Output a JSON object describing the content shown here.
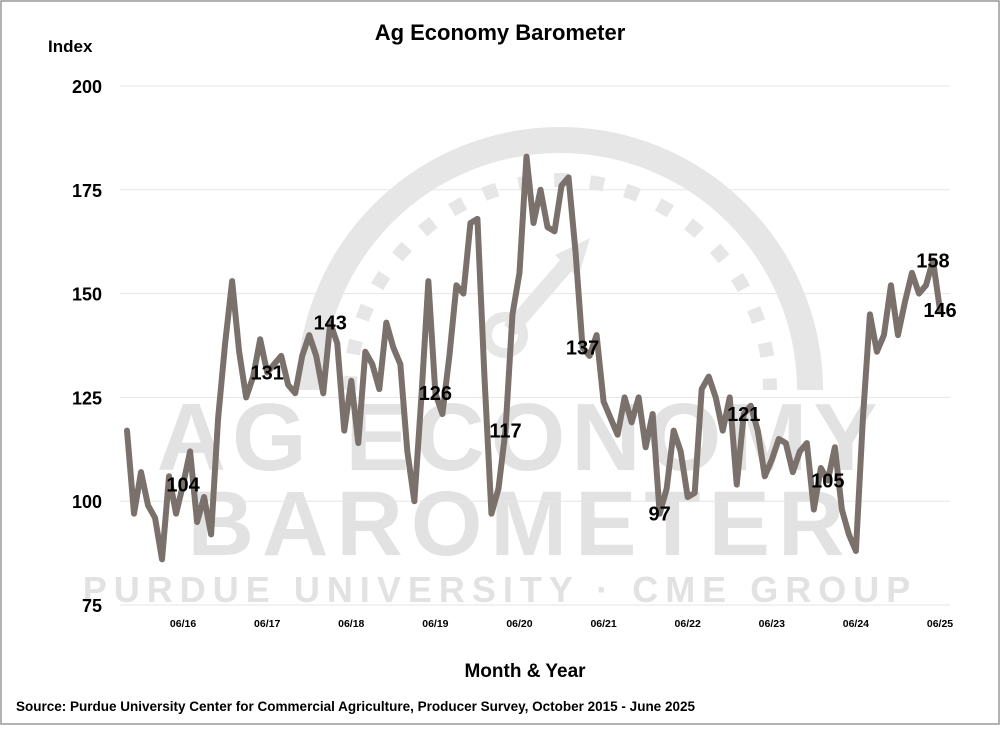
{
  "chart_data": {
    "type": "line",
    "title": "Ag Economy Barometer",
    "y_label": "Index",
    "x_label": "Month & Year",
    "source": "Source: Purdue University Center for Commercial Agriculture, Producer Survey, October 2015 - June 2025",
    "watermark": {
      "line1": "AG ECONOMY",
      "line2": "BAROMETER",
      "line3": "PURDUE UNIVERSITY · CME GROUP"
    },
    "color": "#7b716c",
    "grid": true,
    "ylim": [
      75,
      200
    ],
    "yticks": [
      75,
      100,
      125,
      150,
      175,
      200
    ],
    "categories": [
      null,
      null,
      null,
      null,
      null,
      null,
      null,
      null,
      "06/16",
      null,
      null,
      null,
      null,
      null,
      null,
      null,
      null,
      null,
      null,
      null,
      "06/17",
      null,
      null,
      null,
      null,
      null,
      null,
      null,
      null,
      null,
      null,
      null,
      "06/18",
      null,
      null,
      null,
      null,
      null,
      null,
      null,
      null,
      null,
      null,
      null,
      "06/19",
      null,
      null,
      null,
      null,
      null,
      null,
      null,
      null,
      null,
      null,
      null,
      "06/20",
      null,
      null,
      null,
      null,
      null,
      null,
      null,
      null,
      null,
      null,
      null,
      "06/21",
      null,
      null,
      null,
      null,
      null,
      null,
      null,
      null,
      null,
      null,
      null,
      "06/22",
      null,
      null,
      null,
      null,
      null,
      null,
      null,
      null,
      null,
      null,
      null,
      "06/23",
      null,
      null,
      null,
      null,
      null,
      null,
      null,
      null,
      null,
      null,
      null,
      "06/24",
      null,
      null,
      null,
      null,
      null,
      null,
      null,
      null,
      null,
      null,
      null,
      "06/25"
    ],
    "values": [
      117,
      97,
      107,
      99,
      96,
      86,
      106,
      97,
      104,
      112,
      95,
      101,
      92,
      120,
      138,
      153,
      136,
      125,
      130,
      139,
      131,
      133,
      135,
      128,
      126,
      135,
      140,
      135,
      126,
      143,
      138,
      117,
      129,
      114,
      136,
      133,
      127,
      143,
      137,
      133,
      112,
      100,
      125,
      153,
      126,
      121,
      135,
      152,
      150,
      167,
      168,
      130,
      97,
      103,
      117,
      145,
      155,
      183,
      167,
      175,
      166,
      165,
      176,
      178,
      160,
      137,
      135,
      140,
      124,
      120,
      116,
      125,
      119,
      125,
      113,
      121,
      97,
      103,
      117,
      112,
      101,
      102,
      127,
      130,
      125,
      117,
      125,
      104,
      121,
      123,
      117,
      106,
      110,
      115,
      114,
      107,
      112,
      114,
      98,
      108,
      105,
      113,
      98,
      92,
      88,
      120,
      145,
      136,
      140,
      152,
      140,
      148,
      155,
      150,
      152,
      158,
      146
    ],
    "value_labels": [
      null,
      null,
      null,
      null,
      null,
      null,
      null,
      null,
      "104",
      null,
      null,
      null,
      null,
      null,
      null,
      null,
      null,
      null,
      null,
      null,
      "131",
      null,
      null,
      null,
      null,
      null,
      null,
      null,
      null,
      "143",
      null,
      null,
      null,
      null,
      null,
      null,
      null,
      null,
      null,
      null,
      null,
      null,
      null,
      null,
      "126",
      null,
      null,
      null,
      null,
      null,
      null,
      null,
      null,
      null,
      "117",
      null,
      null,
      null,
      null,
      null,
      null,
      null,
      null,
      null,
      null,
      "137",
      null,
      null,
      null,
      null,
      null,
      null,
      null,
      null,
      null,
      null,
      "97",
      null,
      null,
      null,
      null,
      null,
      null,
      null,
      null,
      null,
      null,
      null,
      "121",
      null,
      null,
      null,
      null,
      null,
      null,
      null,
      null,
      null,
      null,
      null,
      "105",
      null,
      null,
      null,
      null,
      null,
      null,
      null,
      null,
      null,
      null,
      null,
      null,
      null,
      null,
      "158",
      "146"
    ]
  }
}
